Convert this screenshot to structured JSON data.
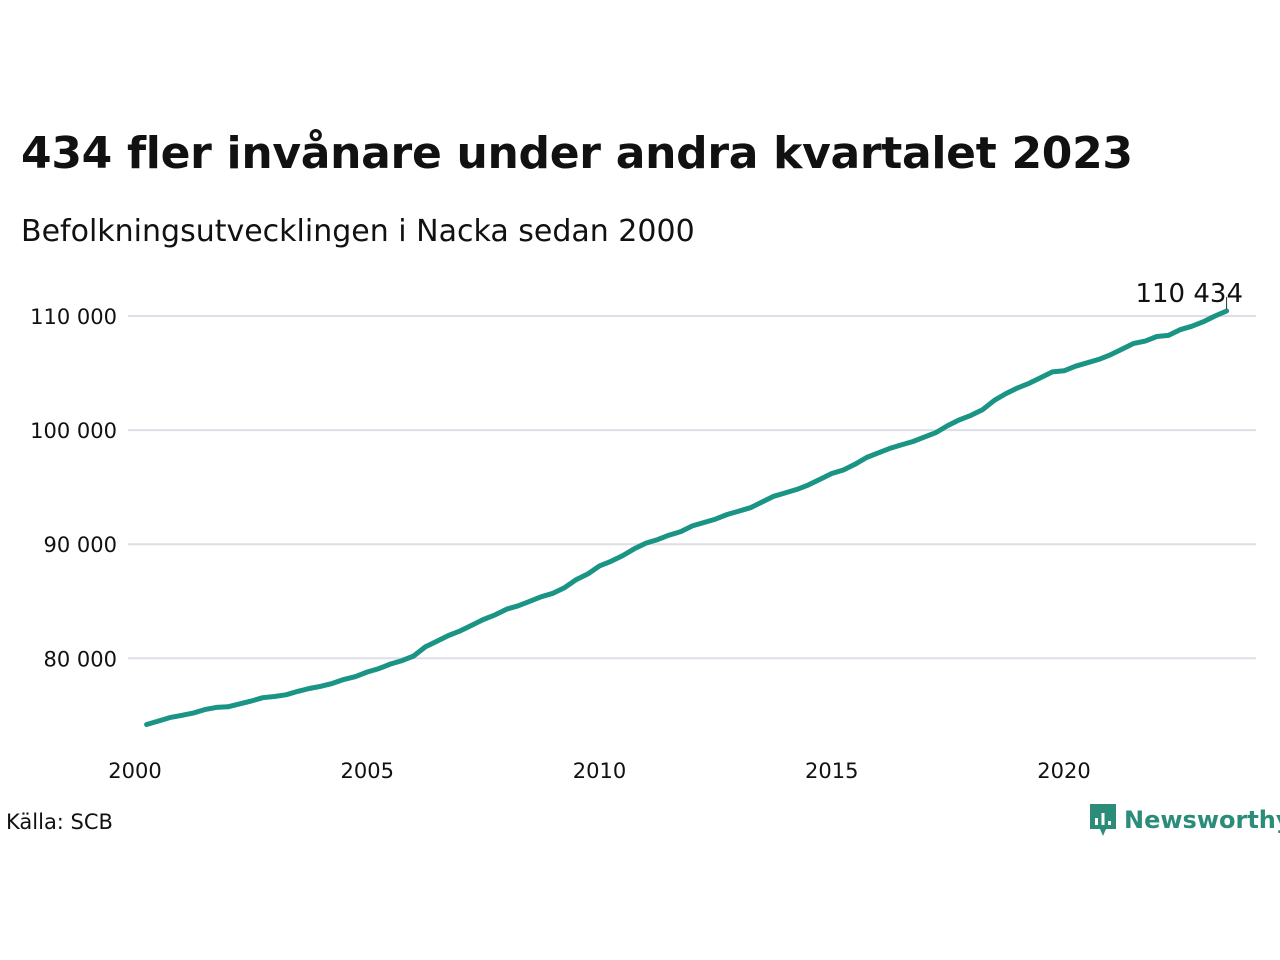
{
  "title": "434 fler invånare under andra kvartalet 2023",
  "subtitle": "Befolkningsutvecklingen i Nacka sedan 2000",
  "source": "Källa: SCB",
  "brand": "Newsworthy",
  "colors": {
    "line": "#1a9484",
    "grid": "#dedee6",
    "brand": "#2c8c7a"
  },
  "chart_data": {
    "type": "line",
    "xlim": [
      2000,
      2024
    ],
    "ylim": [
      73000,
      111500
    ],
    "x_ticks": [
      {
        "value": 2000,
        "label": "2000"
      },
      {
        "value": 2005,
        "label": "2005"
      },
      {
        "value": 2010,
        "label": "2010"
      },
      {
        "value": 2015,
        "label": "2015"
      },
      {
        "value": 2020,
        "label": "2020"
      }
    ],
    "y_ticks": [
      {
        "value": 80000,
        "label": "80 000"
      },
      {
        "value": 90000,
        "label": "90 000"
      },
      {
        "value": 100000,
        "label": "100 000"
      },
      {
        "value": 110000,
        "label": "110 000"
      }
    ],
    "grid": true,
    "end_label": "110 434",
    "series": [
      {
        "x": [
          2000.25,
          2000.5,
          2000.75,
          2001.0,
          2001.25,
          2001.5,
          2001.75,
          2002.0,
          2002.25,
          2002.5,
          2002.75,
          2003.0,
          2003.25,
          2003.5,
          2003.75,
          2004.0,
          2004.25,
          2004.5,
          2004.75,
          2005.0,
          2005.25,
          2005.5,
          2005.75,
          2006.0,
          2006.25,
          2006.5,
          2006.75,
          2007.0,
          2007.25,
          2007.5,
          2007.75,
          2008.0,
          2008.25,
          2008.5,
          2008.75,
          2009.0,
          2009.25,
          2009.5,
          2009.75,
          2010.0,
          2010.25,
          2010.5,
          2010.75,
          2011.0,
          2011.25,
          2011.5,
          2011.75,
          2012.0,
          2012.25,
          2012.5,
          2012.75,
          2013.0,
          2013.25,
          2013.5,
          2013.75,
          2014.0,
          2014.25,
          2014.5,
          2014.75,
          2015.0,
          2015.25,
          2015.5,
          2015.75,
          2016.0,
          2016.25,
          2016.5,
          2016.75,
          2017.0,
          2017.25,
          2017.5,
          2017.75,
          2018.0,
          2018.25,
          2018.5,
          2018.75,
          2019.0,
          2019.25,
          2019.5,
          2019.75,
          2020.0,
          2020.25,
          2020.5,
          2020.75,
          2021.0,
          2021.25,
          2021.5,
          2021.75,
          2022.0,
          2022.25,
          2022.5,
          2022.75,
          2023.0,
          2023.25,
          2023.5
        ],
        "y": [
          74200,
          74500,
          74800,
          75000,
          75200,
          75500,
          75700,
          75750,
          76000,
          76250,
          76550,
          76650,
          76800,
          77100,
          77350,
          77550,
          77800,
          78150,
          78400,
          78800,
          79100,
          79500,
          79800,
          80200,
          81000,
          81500,
          82000,
          82400,
          82900,
          83400,
          83800,
          84300,
          84600,
          85000,
          85400,
          85700,
          86200,
          86900,
          87400,
          88100,
          88500,
          89000,
          89600,
          90100,
          90400,
          90800,
          91100,
          91600,
          91900,
          92200,
          92600,
          92900,
          93200,
          93700,
          94200,
          94500,
          94800,
          95200,
          95700,
          96200,
          96500,
          97000,
          97600,
          98000,
          98400,
          98700,
          99000,
          99400,
          99800,
          100400,
          100900,
          101300,
          101800,
          102600,
          103200,
          103700,
          104100,
          104600,
          105100,
          105200,
          105600,
          105900,
          106200,
          106600,
          107100,
          107600,
          107800,
          108200,
          108300,
          108800,
          109100,
          109500,
          110000,
          110434
        ]
      }
    ]
  }
}
